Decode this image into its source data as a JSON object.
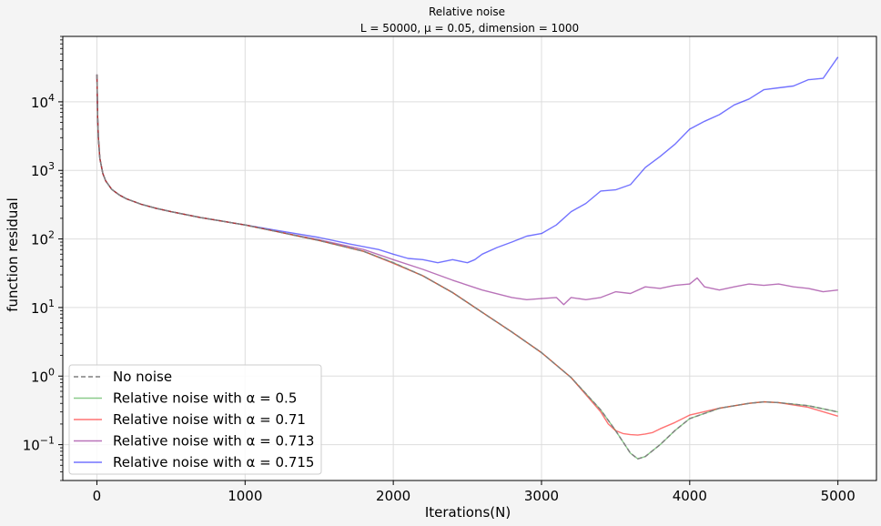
{
  "chart_data": {
    "type": "line",
    "title": "Relative noise",
    "subtitle": "L = 50000, μ = 0.05, dimension = 1000",
    "xlabel": "Iterations(N)",
    "ylabel": "function residual",
    "xlim": [
      -230,
      5260
    ],
    "ylim": [
      0.03,
      90000
    ],
    "yscale": "log",
    "x_ticks": [
      0,
      1000,
      2000,
      3000,
      4000,
      5000
    ],
    "x_tick_labels": [
      "0",
      "1000",
      "2000",
      "3000",
      "4000",
      "5000"
    ],
    "y_ticks": [
      0.1,
      1,
      10,
      100,
      1000,
      10000
    ],
    "y_tick_labels": [
      {
        "base": "10",
        "exp": "−1"
      },
      {
        "base": "10",
        "exp": "0"
      },
      {
        "base": "10",
        "exp": "1"
      },
      {
        "base": "10",
        "exp": "2"
      },
      {
        "base": "10",
        "exp": "3"
      },
      {
        "base": "10",
        "exp": "4"
      }
    ],
    "grid": true,
    "legend_position": "lower-left",
    "series": [
      {
        "name": "No noise",
        "color": "#808080",
        "dash": true,
        "x": [
          0,
          5,
          10,
          20,
          40,
          60,
          100,
          150,
          200,
          300,
          400,
          500,
          700,
          1000,
          1200,
          1500,
          1800,
          2000,
          2200,
          2400,
          2600,
          2800,
          3000,
          3200,
          3400,
          3500,
          3550,
          3600,
          3650,
          3700,
          3800,
          3900,
          4000,
          4200,
          4400,
          4500,
          4600,
          4800,
          5000
        ],
        "y": [
          25000,
          6000,
          3000,
          1500,
          900,
          700,
          530,
          440,
          385,
          320,
          280,
          250,
          205,
          160,
          130,
          95,
          66,
          45,
          29,
          16.5,
          8.5,
          4.4,
          2.2,
          0.95,
          0.32,
          0.16,
          0.11,
          0.075,
          0.062,
          0.067,
          0.1,
          0.16,
          0.24,
          0.34,
          0.4,
          0.42,
          0.41,
          0.37,
          0.3
        ]
      },
      {
        "name": "Relative noise with α = 0.5",
        "color": "#2ca02c",
        "dash": false,
        "x": [
          0,
          5,
          10,
          20,
          40,
          60,
          100,
          150,
          200,
          300,
          400,
          500,
          700,
          1000,
          1200,
          1500,
          1800,
          2000,
          2200,
          2400,
          2600,
          2800,
          3000,
          3200,
          3400,
          3500,
          3550,
          3600,
          3650,
          3700,
          3800,
          3900,
          4000,
          4200,
          4400,
          4500,
          4600,
          4800,
          5000
        ],
        "y": [
          25000,
          6000,
          3000,
          1500,
          900,
          700,
          530,
          440,
          385,
          320,
          280,
          250,
          205,
          160,
          130,
          95,
          66,
          45,
          29,
          16.5,
          8.5,
          4.4,
          2.2,
          0.95,
          0.32,
          0.16,
          0.11,
          0.075,
          0.062,
          0.067,
          0.1,
          0.16,
          0.24,
          0.34,
          0.4,
          0.42,
          0.41,
          0.37,
          0.3
        ]
      },
      {
        "name": "Relative noise with α = 0.71",
        "color": "#ff0000",
        "dash": false,
        "x": [
          0,
          5,
          10,
          20,
          40,
          60,
          100,
          150,
          200,
          300,
          400,
          500,
          700,
          1000,
          1200,
          1500,
          1800,
          2000,
          2200,
          2400,
          2600,
          2800,
          3000,
          3200,
          3400,
          3450,
          3500,
          3550,
          3600,
          3650,
          3700,
          3750,
          3800,
          3900,
          4000,
          4200,
          4400,
          4500,
          4600,
          4800,
          5000
        ],
        "y": [
          25000,
          6000,
          3000,
          1500,
          900,
          700,
          530,
          440,
          385,
          320,
          280,
          250,
          205,
          160,
          130,
          95,
          66,
          44,
          29,
          16.5,
          8.5,
          4.4,
          2.2,
          0.95,
          0.3,
          0.2,
          0.16,
          0.145,
          0.14,
          0.138,
          0.143,
          0.15,
          0.17,
          0.21,
          0.27,
          0.34,
          0.4,
          0.42,
          0.41,
          0.35,
          0.26
        ]
      },
      {
        "name": "Relative noise with α = 0.713",
        "color": "#800080",
        "dash": false,
        "x": [
          0,
          5,
          10,
          20,
          40,
          60,
          100,
          150,
          200,
          300,
          400,
          500,
          700,
          1000,
          1200,
          1500,
          1800,
          2000,
          2200,
          2400,
          2600,
          2800,
          2900,
          3000,
          3100,
          3150,
          3200,
          3300,
          3400,
          3500,
          3600,
          3700,
          3800,
          3900,
          4000,
          4050,
          4100,
          4200,
          4300,
          4400,
          4500,
          4600,
          4700,
          4800,
          4900,
          5000
        ],
        "y": [
          25000,
          6000,
          3000,
          1500,
          900,
          700,
          530,
          440,
          385,
          320,
          280,
          250,
          205,
          160,
          130,
          97,
          70,
          50,
          36,
          25,
          18,
          14,
          13,
          13.5,
          14,
          11,
          14,
          13,
          14,
          17,
          16,
          20,
          19,
          21,
          22,
          27,
          20,
          18,
          20,
          22,
          21,
          22,
          20,
          19,
          17,
          18
        ]
      },
      {
        "name": "Relative noise with α = 0.715",
        "color": "#0000ff",
        "dash": false,
        "x": [
          0,
          5,
          10,
          20,
          40,
          60,
          100,
          150,
          200,
          300,
          400,
          500,
          700,
          1000,
          1200,
          1500,
          1700,
          1900,
          2000,
          2100,
          2200,
          2300,
          2400,
          2500,
          2550,
          2600,
          2700,
          2800,
          2900,
          3000,
          3100,
          3200,
          3300,
          3400,
          3500,
          3600,
          3700,
          3800,
          3900,
          4000,
          4100,
          4200,
          4300,
          4400,
          4500,
          4600,
          4700,
          4800,
          4900,
          5000
        ],
        "y": [
          25000,
          6000,
          3000,
          1500,
          900,
          700,
          530,
          440,
          385,
          320,
          280,
          250,
          205,
          160,
          135,
          105,
          85,
          70,
          60,
          52,
          50,
          45,
          50,
          45,
          50,
          60,
          75,
          90,
          110,
          120,
          160,
          250,
          330,
          500,
          520,
          620,
          1100,
          1600,
          2400,
          4000,
          5200,
          6500,
          9000,
          11000,
          15000,
          16000,
          17000,
          21000,
          22000,
          45000
        ]
      }
    ]
  }
}
